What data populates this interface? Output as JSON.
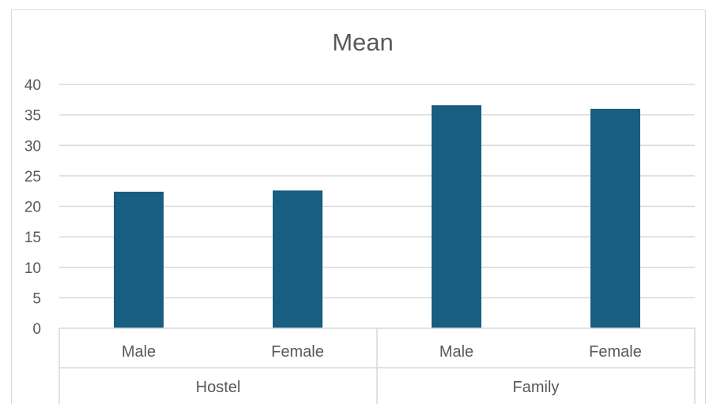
{
  "chart_data": {
    "type": "bar",
    "title": "Mean",
    "xlabel": "",
    "ylabel": "",
    "ylim": [
      0,
      40
    ],
    "yticks": [
      0,
      5,
      10,
      15,
      20,
      25,
      30,
      35,
      40
    ],
    "grid": true,
    "legend": "none",
    "groups": [
      {
        "label": "Hostel",
        "categories": [
          "Male",
          "Female"
        ]
      },
      {
        "label": "Family",
        "categories": [
          "Male",
          "Female"
        ]
      }
    ],
    "categories": [
      "Male",
      "Female",
      "Male",
      "Female"
    ],
    "values": [
      22.4,
      22.6,
      36.6,
      36.0
    ],
    "bar_color": "#175e80"
  }
}
